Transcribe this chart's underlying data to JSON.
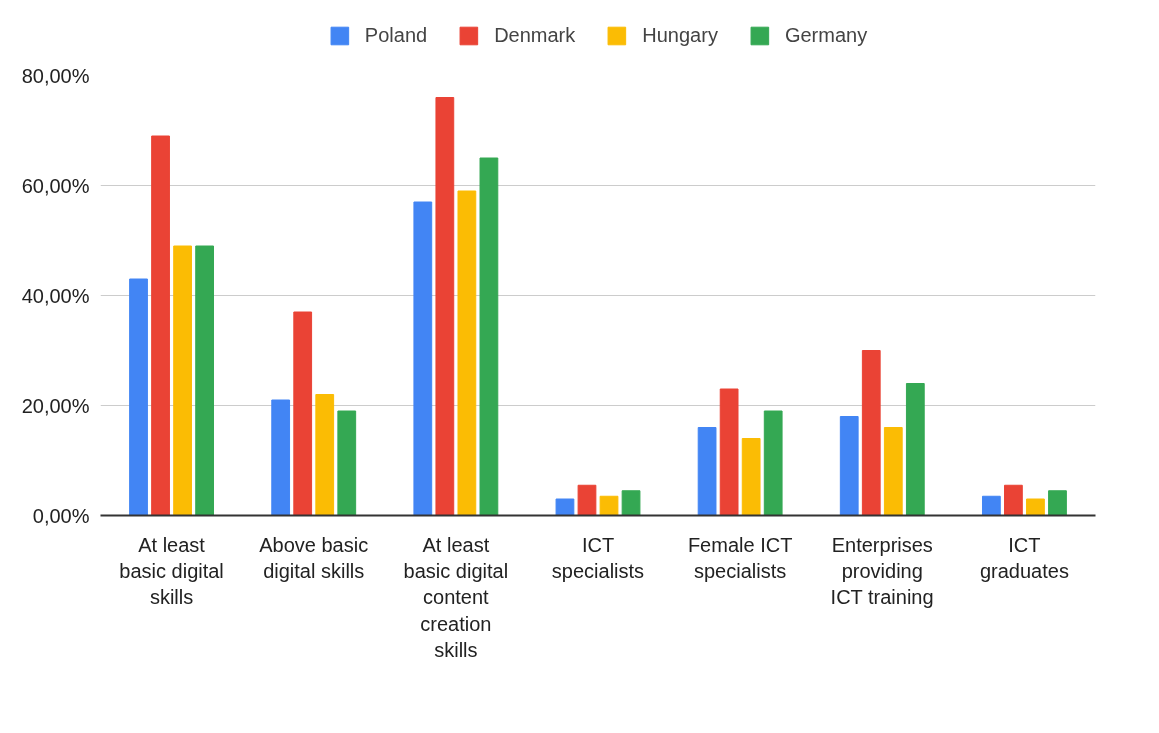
{
  "chart_data": {
    "type": "bar",
    "categories": [
      "At least\nbasic digital\nskills",
      "Above basic\ndigital skills",
      "At least\nbasic digital\ncontent\ncreation\nskills",
      "ICT\nspecialists",
      "Female ICT\nspecialists",
      "Enterprises\nproviding\nICT training",
      "ICT\ngraduates"
    ],
    "series": [
      {
        "name": "Poland",
        "color": "#4285f4",
        "values": [
          43,
          21,
          57,
          3,
          16,
          18,
          3.5
        ]
      },
      {
        "name": "Denmark",
        "color": "#ea4335",
        "values": [
          69,
          37,
          76,
          5.5,
          23,
          30,
          5.5
        ]
      },
      {
        "name": "Hungary",
        "color": "#fbbc04",
        "values": [
          49,
          22,
          59,
          3.5,
          14,
          16,
          3
        ]
      },
      {
        "name": "Germany",
        "color": "#34a853",
        "values": [
          49,
          19,
          65,
          4.5,
          19,
          24,
          4.5
        ]
      }
    ],
    "ylim": [
      0,
      80
    ],
    "yticks": [
      {
        "value": 0,
        "label": "0,00%"
      },
      {
        "value": 20,
        "label": "20,00%"
      },
      {
        "value": 40,
        "label": "40,00%"
      },
      {
        "value": 60,
        "label": "60,00%"
      },
      {
        "value": 80,
        "label": "80,00%"
      }
    ],
    "grid": "y",
    "legend": "top"
  }
}
